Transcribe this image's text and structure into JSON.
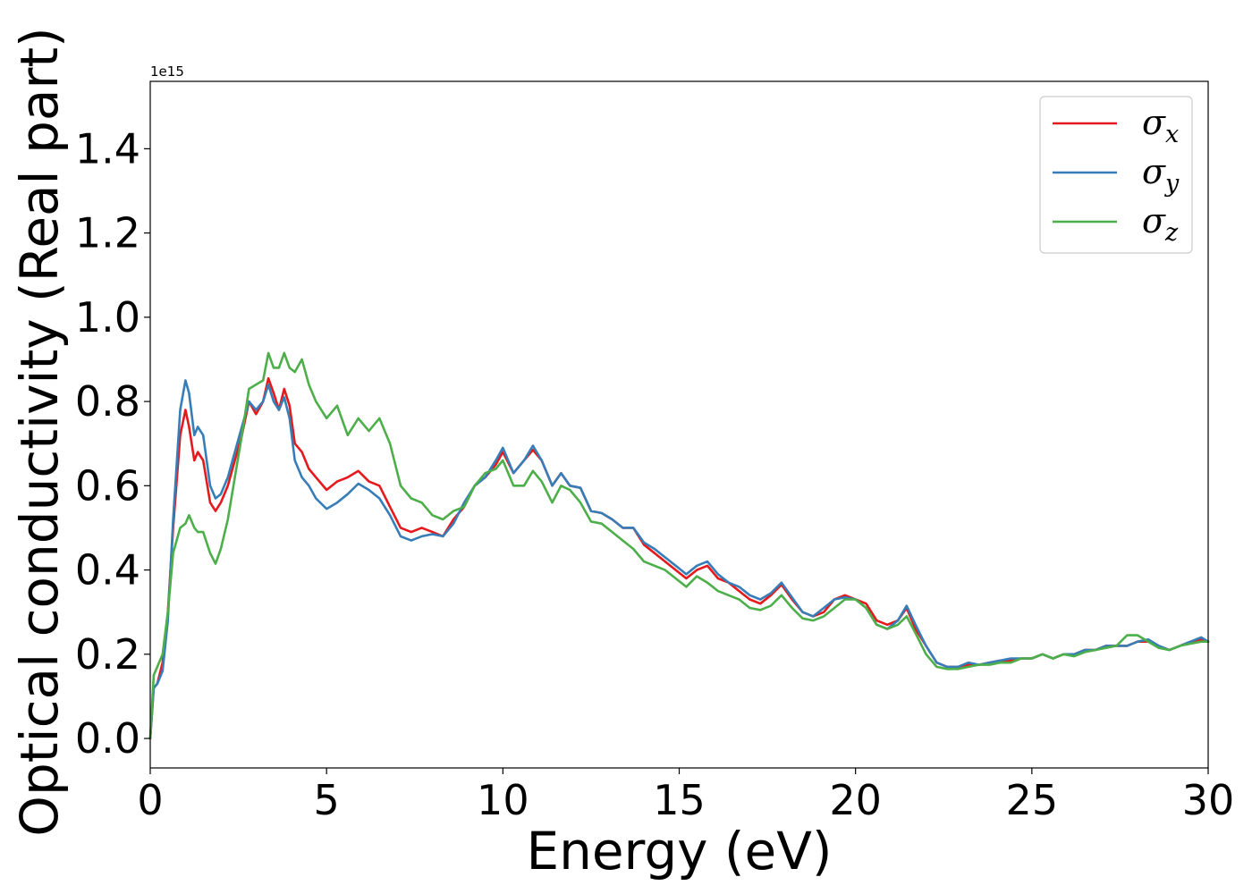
{
  "chart_data": {
    "type": "line",
    "title": "",
    "xlabel": "Energy (eV)",
    "ylabel": "Optical conductivity (Real part)",
    "y_offset_label": "1e15",
    "xlim": [
      0,
      30
    ],
    "ylim": [
      -0.07,
      1.56
    ],
    "x_ticks": [
      0,
      5,
      10,
      15,
      20,
      25,
      30
    ],
    "y_ticks": [
      0.0,
      0.2,
      0.4,
      0.6,
      0.8,
      1.0,
      1.2,
      1.4
    ],
    "x_tick_labels": [
      "0",
      "5",
      "10",
      "15",
      "20",
      "25",
      "30"
    ],
    "y_tick_labels": [
      "0.0",
      "0.2",
      "0.4",
      "0.6",
      "0.8",
      "1.0",
      "1.2",
      "1.4"
    ],
    "grid": false,
    "legend_position": "top-right",
    "series": [
      {
        "name": "σ",
        "subscript": "x",
        "color": "#e41a1c",
        "x": [
          0.0,
          0.1,
          0.2,
          0.35,
          0.5,
          0.65,
          0.85,
          1.0,
          1.1,
          1.25,
          1.35,
          1.5,
          1.7,
          1.85,
          2.0,
          2.2,
          2.4,
          2.6,
          2.8,
          3.0,
          3.2,
          3.35,
          3.5,
          3.65,
          3.8,
          3.95,
          4.1,
          4.3,
          4.5,
          4.7,
          5.0,
          5.3,
          5.6,
          5.9,
          6.2,
          6.5,
          6.8,
          7.1,
          7.4,
          7.7,
          8.0,
          8.3,
          8.6,
          8.9,
          9.2,
          9.5,
          9.8,
          10.0,
          10.3,
          10.6,
          10.85,
          11.1,
          11.4,
          11.65,
          11.9,
          12.2,
          12.5,
          12.8,
          13.1,
          13.4,
          13.7,
          14.0,
          14.3,
          14.6,
          14.9,
          15.2,
          15.5,
          15.8,
          16.1,
          16.4,
          16.7,
          17.0,
          17.3,
          17.6,
          17.9,
          18.2,
          18.5,
          18.8,
          19.1,
          19.4,
          19.7,
          20.0,
          20.3,
          20.6,
          20.9,
          21.2,
          21.45,
          21.7,
          22.0,
          22.3,
          22.6,
          22.9,
          23.2,
          23.5,
          23.8,
          24.1,
          24.4,
          24.7,
          25.0,
          25.3,
          25.6,
          25.9,
          26.2,
          26.5,
          26.8,
          27.1,
          27.4,
          27.7,
          28.0,
          28.3,
          28.6,
          28.9,
          29.2,
          29.5,
          29.8,
          30.0
        ],
        "values": [
          0.0,
          0.12,
          0.13,
          0.18,
          0.3,
          0.5,
          0.72,
          0.78,
          0.74,
          0.66,
          0.68,
          0.66,
          0.56,
          0.54,
          0.56,
          0.6,
          0.66,
          0.72,
          0.8,
          0.77,
          0.8,
          0.855,
          0.82,
          0.78,
          0.83,
          0.79,
          0.7,
          0.68,
          0.64,
          0.62,
          0.59,
          0.61,
          0.62,
          0.635,
          0.61,
          0.6,
          0.55,
          0.5,
          0.49,
          0.5,
          0.49,
          0.48,
          0.52,
          0.55,
          0.6,
          0.62,
          0.65,
          0.68,
          0.63,
          0.66,
          0.685,
          0.66,
          0.6,
          0.63,
          0.6,
          0.595,
          0.54,
          0.535,
          0.52,
          0.5,
          0.5,
          0.46,
          0.44,
          0.42,
          0.4,
          0.38,
          0.4,
          0.41,
          0.38,
          0.37,
          0.35,
          0.33,
          0.32,
          0.34,
          0.365,
          0.33,
          0.3,
          0.29,
          0.3,
          0.33,
          0.34,
          0.33,
          0.32,
          0.28,
          0.27,
          0.28,
          0.31,
          0.26,
          0.22,
          0.18,
          0.17,
          0.17,
          0.175,
          0.175,
          0.18,
          0.185,
          0.185,
          0.19,
          0.19,
          0.2,
          0.19,
          0.2,
          0.2,
          0.21,
          0.21,
          0.22,
          0.22,
          0.22,
          0.23,
          0.23,
          0.22,
          0.21,
          0.22,
          0.23,
          0.235,
          0.23
        ]
      },
      {
        "name": "σ",
        "subscript": "y",
        "color": "#377eb8",
        "x": [
          0.0,
          0.1,
          0.2,
          0.35,
          0.5,
          0.65,
          0.85,
          1.0,
          1.1,
          1.25,
          1.35,
          1.5,
          1.7,
          1.85,
          2.0,
          2.2,
          2.4,
          2.6,
          2.8,
          3.0,
          3.2,
          3.35,
          3.5,
          3.65,
          3.8,
          3.95,
          4.1,
          4.3,
          4.5,
          4.7,
          5.0,
          5.3,
          5.6,
          5.9,
          6.2,
          6.5,
          6.8,
          7.1,
          7.4,
          7.7,
          8.0,
          8.3,
          8.6,
          8.9,
          9.2,
          9.5,
          9.8,
          10.0,
          10.3,
          10.6,
          10.85,
          11.1,
          11.4,
          11.65,
          11.9,
          12.2,
          12.5,
          12.8,
          13.1,
          13.4,
          13.7,
          14.0,
          14.3,
          14.6,
          14.9,
          15.2,
          15.5,
          15.8,
          16.1,
          16.4,
          16.7,
          17.0,
          17.3,
          17.6,
          17.9,
          18.2,
          18.5,
          18.8,
          19.1,
          19.4,
          19.7,
          20.0,
          20.3,
          20.6,
          20.9,
          21.2,
          21.45,
          21.7,
          22.0,
          22.3,
          22.6,
          22.9,
          23.2,
          23.5,
          23.8,
          24.1,
          24.4,
          24.7,
          25.0,
          25.3,
          25.6,
          25.9,
          26.2,
          26.5,
          26.8,
          27.1,
          27.4,
          27.7,
          28.0,
          28.3,
          28.6,
          28.9,
          29.2,
          29.5,
          29.8,
          30.0
        ],
        "values": [
          0.0,
          0.12,
          0.13,
          0.16,
          0.28,
          0.52,
          0.78,
          0.85,
          0.82,
          0.72,
          0.74,
          0.72,
          0.6,
          0.57,
          0.58,
          0.62,
          0.68,
          0.74,
          0.8,
          0.78,
          0.8,
          0.84,
          0.8,
          0.78,
          0.81,
          0.76,
          0.66,
          0.62,
          0.6,
          0.57,
          0.545,
          0.56,
          0.58,
          0.605,
          0.59,
          0.57,
          0.53,
          0.48,
          0.47,
          0.48,
          0.485,
          0.48,
          0.51,
          0.56,
          0.6,
          0.62,
          0.66,
          0.69,
          0.63,
          0.66,
          0.695,
          0.66,
          0.6,
          0.63,
          0.6,
          0.595,
          0.54,
          0.535,
          0.52,
          0.5,
          0.5,
          0.465,
          0.45,
          0.43,
          0.41,
          0.39,
          0.41,
          0.42,
          0.39,
          0.37,
          0.36,
          0.34,
          0.33,
          0.345,
          0.37,
          0.335,
          0.3,
          0.29,
          0.31,
          0.33,
          0.335,
          0.33,
          0.31,
          0.27,
          0.26,
          0.28,
          0.315,
          0.27,
          0.22,
          0.18,
          0.17,
          0.17,
          0.18,
          0.175,
          0.18,
          0.185,
          0.19,
          0.19,
          0.19,
          0.2,
          0.19,
          0.2,
          0.2,
          0.21,
          0.21,
          0.22,
          0.22,
          0.22,
          0.23,
          0.235,
          0.22,
          0.21,
          0.22,
          0.23,
          0.24,
          0.23
        ]
      },
      {
        "name": "σ",
        "subscript": "z",
        "color": "#4daf4a",
        "x": [
          0.0,
          0.1,
          0.2,
          0.35,
          0.5,
          0.65,
          0.85,
          1.0,
          1.1,
          1.25,
          1.35,
          1.5,
          1.7,
          1.85,
          2.0,
          2.2,
          2.4,
          2.6,
          2.8,
          3.0,
          3.2,
          3.35,
          3.5,
          3.65,
          3.8,
          3.95,
          4.1,
          4.3,
          4.5,
          4.7,
          5.0,
          5.3,
          5.6,
          5.9,
          6.2,
          6.5,
          6.8,
          7.1,
          7.4,
          7.7,
          8.0,
          8.3,
          8.6,
          8.9,
          9.2,
          9.5,
          9.8,
          10.0,
          10.3,
          10.6,
          10.85,
          11.1,
          11.4,
          11.65,
          11.9,
          12.2,
          12.5,
          12.8,
          13.1,
          13.4,
          13.7,
          14.0,
          14.3,
          14.6,
          14.9,
          15.2,
          15.5,
          15.8,
          16.1,
          16.4,
          16.7,
          17.0,
          17.3,
          17.6,
          17.9,
          18.2,
          18.5,
          18.8,
          19.1,
          19.4,
          19.7,
          20.0,
          20.3,
          20.6,
          20.9,
          21.2,
          21.45,
          21.7,
          22.0,
          22.3,
          22.6,
          22.9,
          23.2,
          23.5,
          23.8,
          24.1,
          24.4,
          24.7,
          25.0,
          25.3,
          25.6,
          25.9,
          26.2,
          26.5,
          26.8,
          27.1,
          27.4,
          27.7,
          28.0,
          28.3,
          28.6,
          28.9,
          29.2,
          29.5,
          29.8,
          30.0
        ],
        "values": [
          0.0,
          0.15,
          0.17,
          0.2,
          0.3,
          0.44,
          0.5,
          0.51,
          0.53,
          0.5,
          0.49,
          0.49,
          0.44,
          0.415,
          0.45,
          0.52,
          0.62,
          0.72,
          0.83,
          0.84,
          0.85,
          0.915,
          0.88,
          0.88,
          0.915,
          0.88,
          0.87,
          0.9,
          0.84,
          0.8,
          0.76,
          0.79,
          0.72,
          0.76,
          0.73,
          0.76,
          0.7,
          0.6,
          0.57,
          0.56,
          0.53,
          0.52,
          0.54,
          0.55,
          0.6,
          0.63,
          0.64,
          0.66,
          0.6,
          0.6,
          0.635,
          0.61,
          0.56,
          0.6,
          0.59,
          0.56,
          0.515,
          0.51,
          0.49,
          0.47,
          0.45,
          0.42,
          0.41,
          0.4,
          0.38,
          0.36,
          0.385,
          0.37,
          0.35,
          0.34,
          0.33,
          0.31,
          0.305,
          0.315,
          0.34,
          0.31,
          0.285,
          0.28,
          0.29,
          0.31,
          0.33,
          0.33,
          0.31,
          0.27,
          0.26,
          0.27,
          0.29,
          0.25,
          0.2,
          0.17,
          0.165,
          0.165,
          0.17,
          0.175,
          0.175,
          0.18,
          0.18,
          0.19,
          0.19,
          0.2,
          0.19,
          0.2,
          0.195,
          0.205,
          0.21,
          0.215,
          0.22,
          0.245,
          0.245,
          0.23,
          0.215,
          0.21,
          0.22,
          0.225,
          0.23,
          0.23
        ]
      }
    ]
  }
}
